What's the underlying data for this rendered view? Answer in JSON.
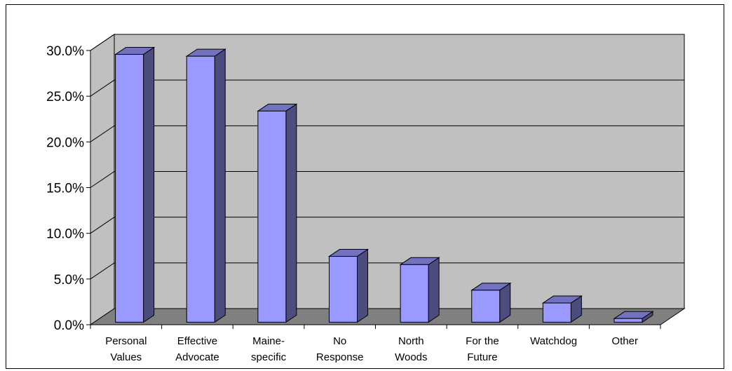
{
  "chart_data": {
    "type": "bar",
    "style": "3d-column",
    "categories": [
      [
        "Personal",
        "Values"
      ],
      [
        "Effective",
        "Advocate"
      ],
      [
        "Maine-",
        "specific"
      ],
      [
        "No",
        "Response"
      ],
      [
        "North",
        "Woods"
      ],
      [
        "For the",
        "Future"
      ],
      [
        "Watchdog"
      ],
      [
        "Other"
      ]
    ],
    "values": [
      29.3,
      29.1,
      23.1,
      7.2,
      6.3,
      3.5,
      2.1,
      0.4
    ],
    "ylim": [
      0,
      30
    ],
    "yticks": [
      "0.0%",
      "5.0%",
      "10.0%",
      "15.0%",
      "20.0%",
      "25.0%",
      "30.0%"
    ],
    "title": "",
    "xlabel": "",
    "ylabel": "",
    "grid": true,
    "legend": "none",
    "colors": {
      "bar_front": "#9999ff",
      "bar_side": "#4c4c7f",
      "bar_top": "#7272bf",
      "wall": "#c0c0c0",
      "floor": "#808080"
    }
  }
}
